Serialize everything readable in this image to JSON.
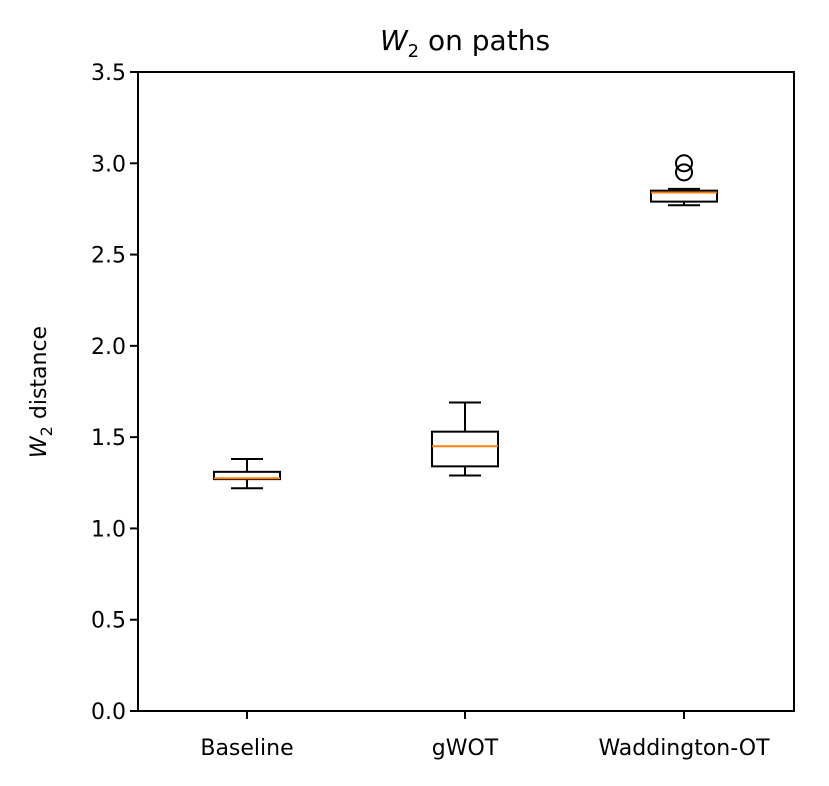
{
  "chart_data": {
    "type": "boxplot",
    "title": {
      "symbol": "W",
      "subscript": "2",
      "suffix": " on paths"
    },
    "ylabel": {
      "symbol": "W",
      "subscript": "2",
      "suffix": " distance"
    },
    "xlabel": "",
    "categories": [
      "Baseline",
      "gWOT",
      "Waddington-OT"
    ],
    "y_ticks": [
      "0.0",
      "0.5",
      "1.0",
      "1.5",
      "2.0",
      "2.5",
      "3.0",
      "3.5"
    ],
    "ylim": [
      0,
      3.5
    ],
    "grid": false,
    "legend": "none",
    "colors": {
      "box": "#000000",
      "median": "#ff7f0e",
      "axis": "#000000",
      "background": "#ffffff"
    },
    "boxes": [
      {
        "category": "Baseline",
        "whisker_low": 1.22,
        "q1": 1.27,
        "median": 1.275,
        "q3": 1.31,
        "whisker_high": 1.38,
        "outliers": []
      },
      {
        "category": "gWOT",
        "whisker_low": 1.29,
        "q1": 1.34,
        "median": 1.45,
        "q3": 1.53,
        "whisker_high": 1.69,
        "outliers": []
      },
      {
        "category": "Waddington-OT",
        "whisker_low": 2.77,
        "q1": 2.79,
        "median": 2.84,
        "q3": 2.85,
        "whisker_high": 2.86,
        "outliers": [
          2.95,
          3.0
        ]
      }
    ]
  }
}
